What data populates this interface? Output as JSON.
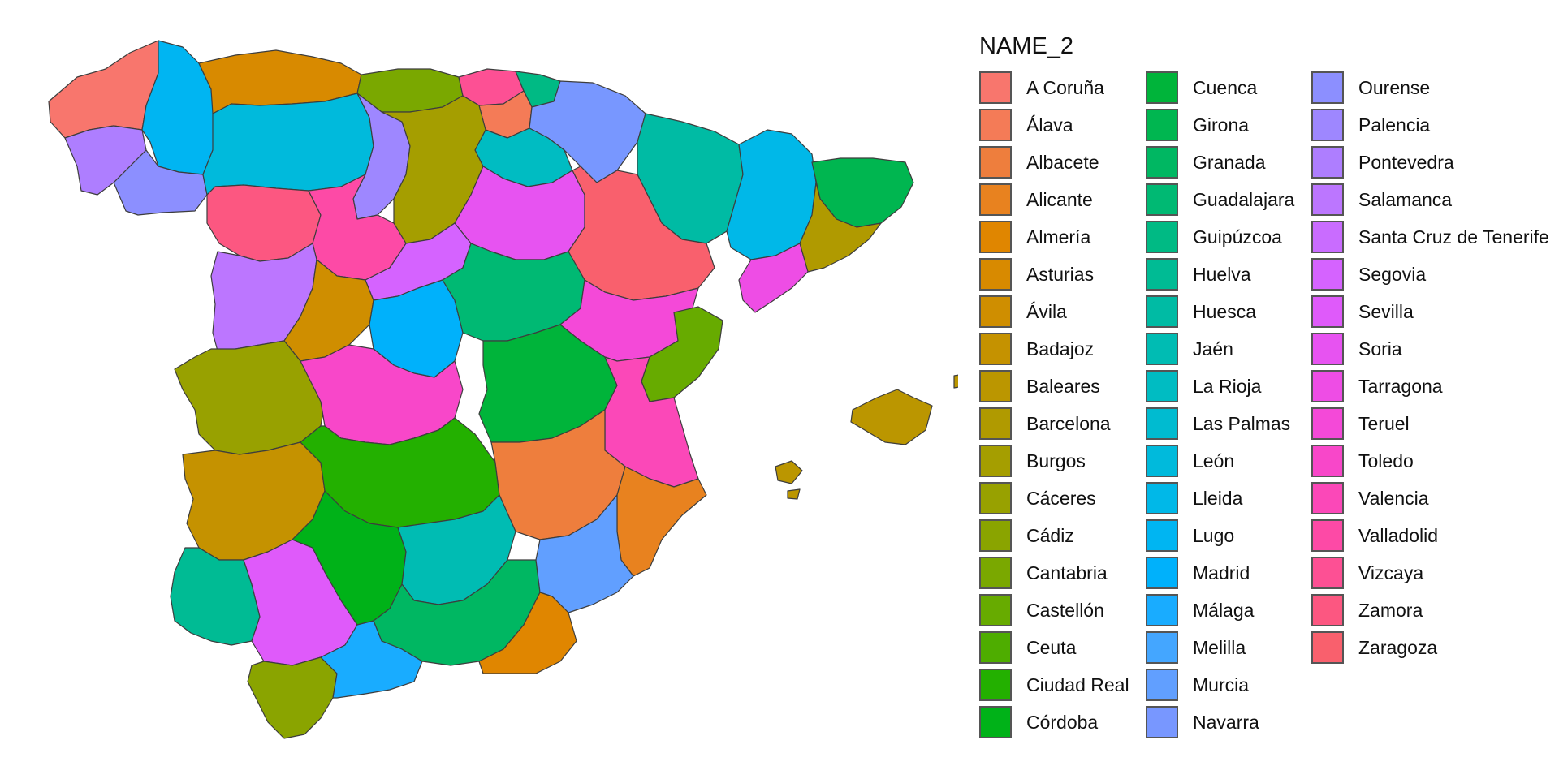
{
  "legend": {
    "title": "NAME_2",
    "columns": [
      [
        {
          "name": "A Coruña",
          "color": "#F8766D"
        },
        {
          "name": "Álava",
          "color": "#F47B57"
        },
        {
          "name": "Albacete",
          "color": "#EE7E3D"
        },
        {
          "name": "Alicante",
          "color": "#E8821F"
        },
        {
          "name": "Almería",
          "color": "#E08600"
        },
        {
          "name": "Asturias",
          "color": "#D88A00"
        },
        {
          "name": "Ávila",
          "color": "#CF8E00"
        },
        {
          "name": "Badajoz",
          "color": "#C59200"
        },
        {
          "name": "Baleares",
          "color": "#BB9600"
        },
        {
          "name": "Barcelona",
          "color": "#B09A00"
        },
        {
          "name": "Burgos",
          "color": "#A59E00"
        },
        {
          "name": "Cáceres",
          "color": "#98A100"
        },
        {
          "name": "Cádiz",
          "color": "#8AA400"
        },
        {
          "name": "Cantabria",
          "color": "#7AA800"
        },
        {
          "name": "Castellón",
          "color": "#67AB00"
        },
        {
          "name": "Ceuta",
          "color": "#4EAD00"
        },
        {
          "name": "Ciudad Real",
          "color": "#23B000"
        },
        {
          "name": "Córdoba",
          "color": "#00B218"
        }
      ],
      [
        {
          "name": "Cuenca",
          "color": "#00B43A"
        },
        {
          "name": "Girona",
          "color": "#00B650"
        },
        {
          "name": "Granada",
          "color": "#00B762"
        },
        {
          "name": "Guadalajara",
          "color": "#00B973"
        },
        {
          "name": "Guipúzcoa",
          "color": "#00BA84"
        },
        {
          "name": "Huelva",
          "color": "#00BB94"
        },
        {
          "name": "Huesca",
          "color": "#00BBA4"
        },
        {
          "name": "Jaén",
          "color": "#00BCB3"
        },
        {
          "name": "La Rioja",
          "color": "#00BCC2"
        },
        {
          "name": "Las Palmas",
          "color": "#00BBD0"
        },
        {
          "name": "León",
          "color": "#00BADC"
        },
        {
          "name": "Lleida",
          "color": "#00B8E8"
        },
        {
          "name": "Lugo",
          "color": "#00B5F2"
        },
        {
          "name": "Madrid",
          "color": "#00B1FB"
        },
        {
          "name": "Málaga",
          "color": "#19ACFF"
        },
        {
          "name": "Melilla",
          "color": "#44A6FF"
        },
        {
          "name": "Murcia",
          "color": "#619FFF"
        },
        {
          "name": "Navarra",
          "color": "#7897FF"
        }
      ],
      [
        {
          "name": "Ourense",
          "color": "#8C8FFF"
        },
        {
          "name": "Palencia",
          "color": "#9E87FF"
        },
        {
          "name": "Pontevedra",
          "color": "#AE7EFF"
        },
        {
          "name": "Salamanca",
          "color": "#BC76FF"
        },
        {
          "name": "Santa Cruz de Tenerife",
          "color": "#C96CFF"
        },
        {
          "name": "Segovia",
          "color": "#D563FF"
        },
        {
          "name": "Sevilla",
          "color": "#DF5AFA"
        },
        {
          "name": "Soria",
          "color": "#E753F1"
        },
        {
          "name": "Tarragona",
          "color": "#EE4DE5"
        },
        {
          "name": "Teruel",
          "color": "#F449D8"
        },
        {
          "name": "Toledo",
          "color": "#F847C9"
        },
        {
          "name": "Valencia",
          "color": "#FB48B8"
        },
        {
          "name": "Valladolid",
          "color": "#FD4AA6"
        },
        {
          "name": "Vizcaya",
          "color": "#FD5094"
        },
        {
          "name": "Zamora",
          "color": "#FC5781"
        },
        {
          "name": "Zaragoza",
          "color": "#F9606D"
        }
      ]
    ]
  },
  "map": {
    "regions": [
      {
        "name": "A Coruña",
        "color": "#F8766D"
      },
      {
        "name": "Lugo",
        "color": "#00B5F2"
      },
      {
        "name": "Pontevedra",
        "color": "#AE7EFF"
      },
      {
        "name": "Ourense",
        "color": "#8C8FFF"
      },
      {
        "name": "Asturias",
        "color": "#D88A00"
      },
      {
        "name": "Cantabria",
        "color": "#7AA800"
      },
      {
        "name": "Vizcaya",
        "color": "#FD5094"
      },
      {
        "name": "Guipúzcoa",
        "color": "#00BA84"
      },
      {
        "name": "Álava",
        "color": "#F47B57"
      },
      {
        "name": "Navarra",
        "color": "#7897FF"
      },
      {
        "name": "La Rioja",
        "color": "#00BCC2"
      },
      {
        "name": "Huesca",
        "color": "#00BBA4"
      },
      {
        "name": "Lleida",
        "color": "#00B8E8"
      },
      {
        "name": "Girona",
        "color": "#00B650"
      },
      {
        "name": "Barcelona",
        "color": "#B09A00"
      },
      {
        "name": "Tarragona",
        "color": "#EE4DE5"
      },
      {
        "name": "León",
        "color": "#00BADC"
      },
      {
        "name": "Palencia",
        "color": "#9E87FF"
      },
      {
        "name": "Burgos",
        "color": "#A59E00"
      },
      {
        "name": "Zamora",
        "color": "#FC5781"
      },
      {
        "name": "Valladolid",
        "color": "#FD4AA6"
      },
      {
        "name": "Soria",
        "color": "#E753F1"
      },
      {
        "name": "Zaragoza",
        "color": "#F9606D"
      },
      {
        "name": "Salamanca",
        "color": "#BC76FF"
      },
      {
        "name": "Ávila",
        "color": "#CF8E00"
      },
      {
        "name": "Segovia",
        "color": "#D563FF"
      },
      {
        "name": "Madrid",
        "color": "#00B1FB"
      },
      {
        "name": "Guadalajara",
        "color": "#00B973"
      },
      {
        "name": "Cuenca",
        "color": "#00B43A"
      },
      {
        "name": "Teruel",
        "color": "#F449D8"
      },
      {
        "name": "Castellón",
        "color": "#67AB00"
      },
      {
        "name": "Valencia",
        "color": "#FB48B8"
      },
      {
        "name": "Cáceres",
        "color": "#98A100"
      },
      {
        "name": "Toledo",
        "color": "#F847C9"
      },
      {
        "name": "Badajoz",
        "color": "#C59200"
      },
      {
        "name": "Ciudad Real",
        "color": "#23B000"
      },
      {
        "name": "Albacete",
        "color": "#EE7E3D"
      },
      {
        "name": "Alicante",
        "color": "#E8821F"
      },
      {
        "name": "Huelva",
        "color": "#00BB94"
      },
      {
        "name": "Sevilla",
        "color": "#DF5AFA"
      },
      {
        "name": "Córdoba",
        "color": "#00B218"
      },
      {
        "name": "Jaén",
        "color": "#00BCB3"
      },
      {
        "name": "Granada",
        "color": "#00B762"
      },
      {
        "name": "Murcia",
        "color": "#619FFF"
      },
      {
        "name": "Almería",
        "color": "#E08600"
      },
      {
        "name": "Cádiz",
        "color": "#8AA400"
      },
      {
        "name": "Málaga",
        "color": "#19ACFF"
      },
      {
        "name": "Baleares",
        "color": "#BB9600"
      }
    ]
  }
}
